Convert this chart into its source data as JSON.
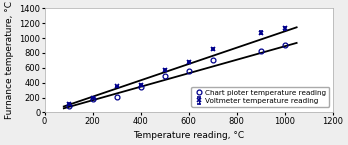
{
  "title": "",
  "xlabel": "Temperature reading, °C",
  "ylabel": "Furnance temperature, °C",
  "xlim": [
    0,
    1200
  ],
  "ylim": [
    0,
    1400
  ],
  "xticks": [
    0,
    200,
    400,
    600,
    800,
    1000,
    1200
  ],
  "yticks": [
    0,
    200,
    400,
    600,
    800,
    1000,
    1200,
    1400
  ],
  "voltmeter_x": [
    100,
    200,
    300,
    400,
    500,
    600,
    700,
    900,
    1000
  ],
  "voltmeter_y": [
    110,
    200,
    350,
    370,
    570,
    680,
    850,
    1070,
    1130
  ],
  "voltmeter_yerr": [
    15,
    10,
    12,
    10,
    15,
    12,
    15,
    20,
    15
  ],
  "chart_x": [
    100,
    200,
    300,
    400,
    500,
    600,
    700,
    900,
    1000
  ],
  "chart_y": [
    80,
    175,
    210,
    340,
    490,
    560,
    710,
    820,
    910
  ],
  "volt_fit_x": [
    80,
    1050
  ],
  "volt_fit_y": [
    80,
    1145
  ],
  "chart_fit_x": [
    80,
    1050
  ],
  "chart_fit_y": [
    55,
    935
  ],
  "volt_color": "#00008B",
  "chart_color": "#00008B",
  "line_color": "#000000",
  "marker_volt": "x",
  "marker_chart": "o",
  "legend_volt": "Voltmeter temperature reading",
  "legend_chart": "Chart pioter temperature reading",
  "bg_color": "#eeeeee",
  "plot_bg": "#ffffff",
  "fontsize": 6.5,
  "tick_fontsize": 6
}
